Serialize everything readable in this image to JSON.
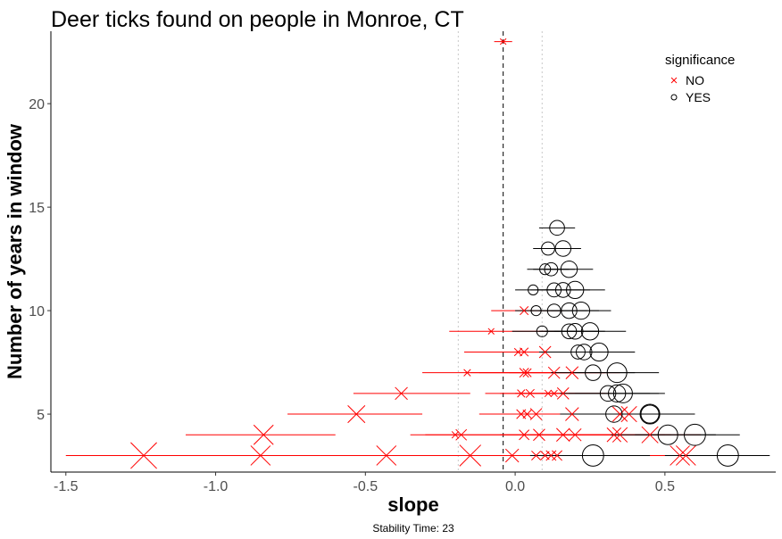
{
  "chart_data": {
    "type": "scatter",
    "title": "Deer ticks found on people in Monroe, CT",
    "xlabel": "slope",
    "ylabel": "Number of years in window",
    "caption": "Stability Time: 23",
    "xlim": [
      -1.55,
      0.87
    ],
    "ylim": [
      2.2,
      23.5
    ],
    "x_ticks": [
      -1.5,
      -1.0,
      -0.5,
      0.0,
      0.5
    ],
    "x_tick_labels": [
      "-1.5",
      "-1.0",
      "-0.5",
      "0.0",
      "0.5"
    ],
    "y_ticks": [
      5,
      10,
      15,
      20
    ],
    "y_tick_labels": [
      "5",
      "10",
      "15",
      "20"
    ],
    "grid": false,
    "reference_lines": {
      "dashed_x": -0.04,
      "dotted_x": [
        -0.19,
        0.09
      ]
    },
    "legend": {
      "title": "significance",
      "position": "top-right",
      "entries": [
        {
          "label": "NO",
          "marker": "x",
          "color": "#ff0000"
        },
        {
          "label": "YES",
          "marker": "circle",
          "color": "#000000"
        }
      ]
    },
    "series": [
      {
        "name": "NO",
        "marker": "x",
        "color": "#ff0000",
        "points": [
          {
            "y": 23,
            "x": -0.04,
            "lo": -0.07,
            "hi": -0.01,
            "size": 0.15
          },
          {
            "y": 10,
            "x": 0.03,
            "lo": -0.08,
            "hi": 0.16,
            "size": 0.3
          },
          {
            "y": 9,
            "x": -0.08,
            "lo": -0.22,
            "hi": 0.15,
            "size": 0.15
          },
          {
            "y": 8,
            "x": 0.03,
            "lo": -0.17,
            "hi": 0.2,
            "size": 0.3
          },
          {
            "y": 8,
            "x": 0.01,
            "lo": -0.17,
            "hi": 0.2,
            "size": 0.25
          },
          {
            "y": 8,
            "x": 0.1,
            "lo": -0.05,
            "hi": 0.25,
            "size": 0.5
          },
          {
            "y": 7,
            "x": -0.16,
            "lo": -0.31,
            "hi": 0.02,
            "size": 0.2
          },
          {
            "y": 7,
            "x": 0.03,
            "lo": -0.15,
            "hi": 0.2,
            "size": 0.35
          },
          {
            "y": 7,
            "x": 0.04,
            "lo": -0.12,
            "hi": 0.2,
            "size": 0.3
          },
          {
            "y": 7,
            "x": 0.13,
            "lo": -0.02,
            "hi": 0.3,
            "size": 0.5
          },
          {
            "y": 7,
            "x": 0.19,
            "lo": 0.05,
            "hi": 0.35,
            "size": 0.55
          },
          {
            "y": 6,
            "x": -0.38,
            "lo": -0.54,
            "hi": -0.15,
            "size": 0.55
          },
          {
            "y": 6,
            "x": 0.02,
            "lo": -0.1,
            "hi": 0.15,
            "size": 0.25
          },
          {
            "y": 6,
            "x": 0.05,
            "lo": -0.05,
            "hi": 0.2,
            "size": 0.3
          },
          {
            "y": 6,
            "x": 0.11,
            "lo": 0.0,
            "hi": 0.25,
            "size": 0.2
          },
          {
            "y": 6,
            "x": 0.13,
            "lo": 0.0,
            "hi": 0.3,
            "size": 0.2
          },
          {
            "y": 6,
            "x": 0.16,
            "lo": 0.02,
            "hi": 0.32,
            "size": 0.5
          },
          {
            "y": 5,
            "x": -0.53,
            "lo": -0.76,
            "hi": -0.31,
            "size": 0.85
          },
          {
            "y": 5,
            "x": 0.02,
            "lo": -0.12,
            "hi": 0.2,
            "size": 0.35
          },
          {
            "y": 5,
            "x": 0.04,
            "lo": -0.1,
            "hi": 0.2,
            "size": 0.3
          },
          {
            "y": 5,
            "x": 0.07,
            "lo": -0.05,
            "hi": 0.25,
            "size": 0.5
          },
          {
            "y": 5,
            "x": 0.19,
            "lo": 0.05,
            "hi": 0.35,
            "size": 0.6
          },
          {
            "y": 5,
            "x": 0.35,
            "lo": 0.15,
            "hi": 0.5,
            "size": 0.7
          },
          {
            "y": 5,
            "x": 0.38,
            "lo": 0.2,
            "hi": 0.53,
            "size": 0.75
          },
          {
            "y": 4,
            "x": -0.84,
            "lo": -1.1,
            "hi": -0.6,
            "size": 1.0
          },
          {
            "y": 4,
            "x": -0.18,
            "lo": -0.35,
            "hi": 0.0,
            "size": 0.45
          },
          {
            "y": 4,
            "x": -0.2,
            "lo": -0.3,
            "hi": -0.1,
            "size": 0.2
          },
          {
            "y": 4,
            "x": 0.03,
            "lo": -0.1,
            "hi": 0.18,
            "size": 0.4
          },
          {
            "y": 4,
            "x": 0.08,
            "lo": -0.05,
            "hi": 0.22,
            "size": 0.5
          },
          {
            "y": 4,
            "x": 0.16,
            "lo": 0.0,
            "hi": 0.33,
            "size": 0.6
          },
          {
            "y": 4,
            "x": 0.2,
            "lo": 0.05,
            "hi": 0.35,
            "size": 0.55
          },
          {
            "y": 4,
            "x": 0.33,
            "lo": 0.15,
            "hi": 0.5,
            "size": 0.65
          },
          {
            "y": 4,
            "x": 0.35,
            "lo": 0.18,
            "hi": 0.52,
            "size": 0.7
          },
          {
            "y": 4,
            "x": 0.45,
            "lo": 0.25,
            "hi": 0.62,
            "size": 0.8
          },
          {
            "y": 3,
            "x": -1.24,
            "lo": -1.5,
            "hi": -0.97,
            "size": 1.4
          },
          {
            "y": 3,
            "x": -0.85,
            "lo": -1.05,
            "hi": -0.65,
            "size": 1.0
          },
          {
            "y": 3,
            "x": -0.43,
            "lo": -0.65,
            "hi": -0.2,
            "size": 1.0
          },
          {
            "y": 3,
            "x": -0.15,
            "lo": -0.3,
            "hi": 0.05,
            "size": 1.1
          },
          {
            "y": 3,
            "x": -0.01,
            "lo": -0.15,
            "hi": 0.15,
            "size": 0.6
          },
          {
            "y": 3,
            "x": 0.07,
            "lo": -0.05,
            "hi": 0.2,
            "size": 0.35
          },
          {
            "y": 3,
            "x": 0.1,
            "lo": -0.02,
            "hi": 0.22,
            "size": 0.3
          },
          {
            "y": 3,
            "x": 0.12,
            "lo": 0.0,
            "hi": 0.25,
            "size": 0.4
          },
          {
            "y": 3,
            "x": 0.14,
            "lo": 0.02,
            "hi": 0.27,
            "size": 0.4
          },
          {
            "y": 3,
            "x": 0.55,
            "lo": 0.35,
            "hi": 0.72,
            "size": 1.0
          },
          {
            "y": 3,
            "x": 0.57,
            "lo": 0.38,
            "hi": 0.74,
            "size": 1.0
          }
        ]
      },
      {
        "name": "YES",
        "marker": "circle",
        "color": "#000000",
        "points": [
          {
            "y": 14,
            "x": 0.14,
            "lo": 0.08,
            "hi": 0.2,
            "size": 0.7
          },
          {
            "y": 13,
            "x": 0.11,
            "lo": 0.06,
            "hi": 0.18,
            "size": 0.6
          },
          {
            "y": 13,
            "x": 0.16,
            "lo": 0.1,
            "hi": 0.22,
            "size": 0.75
          },
          {
            "y": 12,
            "x": 0.1,
            "lo": 0.04,
            "hi": 0.18,
            "size": 0.45
          },
          {
            "y": 12,
            "x": 0.12,
            "lo": 0.06,
            "hi": 0.2,
            "size": 0.6
          },
          {
            "y": 12,
            "x": 0.18,
            "lo": 0.1,
            "hi": 0.26,
            "size": 0.8
          },
          {
            "y": 11,
            "x": 0.06,
            "lo": 0.0,
            "hi": 0.14,
            "size": 0.4
          },
          {
            "y": 11,
            "x": 0.13,
            "lo": 0.05,
            "hi": 0.22,
            "size": 0.65
          },
          {
            "y": 11,
            "x": 0.16,
            "lo": 0.07,
            "hi": 0.25,
            "size": 0.7
          },
          {
            "y": 11,
            "x": 0.2,
            "lo": 0.1,
            "hi": 0.3,
            "size": 0.85
          },
          {
            "y": 10,
            "x": 0.07,
            "lo": 0.0,
            "hi": 0.16,
            "size": 0.4
          },
          {
            "y": 10,
            "x": 0.13,
            "lo": 0.05,
            "hi": 0.24,
            "size": 0.6
          },
          {
            "y": 10,
            "x": 0.18,
            "lo": 0.08,
            "hi": 0.28,
            "size": 0.75
          },
          {
            "y": 10,
            "x": 0.22,
            "lo": 0.12,
            "hi": 0.32,
            "size": 0.85
          },
          {
            "y": 9,
            "x": 0.09,
            "lo": -0.01,
            "hi": 0.2,
            "size": 0.45
          },
          {
            "y": 9,
            "x": 0.18,
            "lo": 0.08,
            "hi": 0.28,
            "size": 0.7
          },
          {
            "y": 9,
            "x": 0.2,
            "lo": 0.1,
            "hi": 0.3,
            "size": 0.75
          },
          {
            "y": 9,
            "x": 0.25,
            "lo": 0.13,
            "hi": 0.37,
            "size": 0.85
          },
          {
            "y": 8,
            "x": 0.21,
            "lo": 0.08,
            "hi": 0.33,
            "size": 0.65
          },
          {
            "y": 8,
            "x": 0.23,
            "lo": 0.1,
            "hi": 0.35,
            "size": 0.75
          },
          {
            "y": 8,
            "x": 0.28,
            "lo": 0.15,
            "hi": 0.4,
            "size": 0.9
          },
          {
            "y": 7,
            "x": 0.26,
            "lo": 0.12,
            "hi": 0.4,
            "size": 0.75
          },
          {
            "y": 7,
            "x": 0.34,
            "lo": 0.2,
            "hi": 0.48,
            "size": 1.0
          },
          {
            "y": 6,
            "x": 0.31,
            "lo": 0.15,
            "hi": 0.45,
            "size": 0.75
          },
          {
            "y": 6,
            "x": 0.34,
            "lo": 0.18,
            "hi": 0.48,
            "size": 0.85
          },
          {
            "y": 6,
            "x": 0.36,
            "lo": 0.2,
            "hi": 0.5,
            "size": 0.95
          },
          {
            "y": 5,
            "x": 0.33,
            "lo": 0.15,
            "hi": 0.5,
            "size": 0.8
          },
          {
            "y": 5,
            "x": 0.45,
            "lo": 0.28,
            "hi": 0.6,
            "size": 1.0
          },
          {
            "y": 5,
            "x": 0.45,
            "lo": 0.3,
            "hi": 0.6,
            "size": 0.9
          },
          {
            "y": 4,
            "x": 0.51,
            "lo": 0.32,
            "hi": 0.67,
            "size": 1.0
          },
          {
            "y": 4,
            "x": 0.6,
            "lo": 0.4,
            "hi": 0.75,
            "size": 1.1
          },
          {
            "y": 3,
            "x": 0.26,
            "lo": 0.05,
            "hi": 0.45,
            "size": 1.1
          },
          {
            "y": 3,
            "x": 0.71,
            "lo": 0.5,
            "hi": 0.85,
            "size": 1.1
          }
        ]
      }
    ]
  }
}
